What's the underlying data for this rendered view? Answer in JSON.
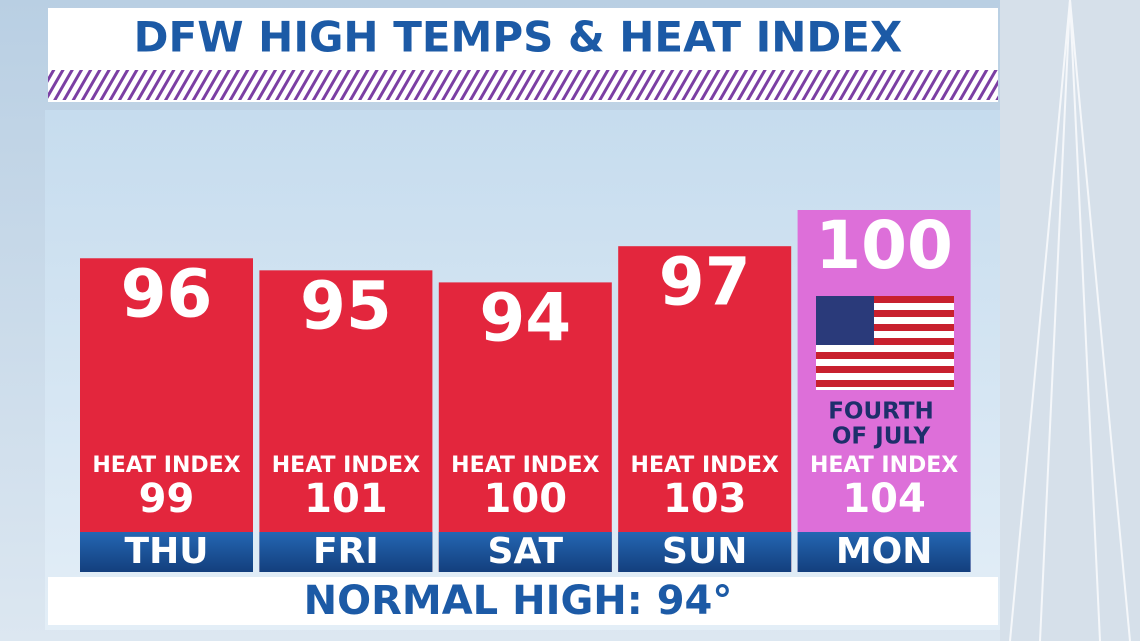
{
  "chart_data": {
    "type": "bar",
    "title": "DFW HIGH TEMPS & HEAT INDEX",
    "categories": [
      "THU",
      "FRI",
      "SAT",
      "SUN",
      "MON"
    ],
    "values": [
      96,
      95,
      94,
      97,
      100
    ],
    "colors": [
      "#e3263d",
      "#e3263d",
      "#e3263d",
      "#e3263d",
      "#dd6fd9"
    ],
    "ylim": [
      70,
      100
    ],
    "heat_index_label": "HEAT INDEX",
    "heat_index": [
      99,
      101,
      100,
      103,
      104
    ],
    "annotation_lines": [
      "FOURTH",
      "OF JULY"
    ],
    "footer": "NORMAL HIGH: 94°"
  }
}
